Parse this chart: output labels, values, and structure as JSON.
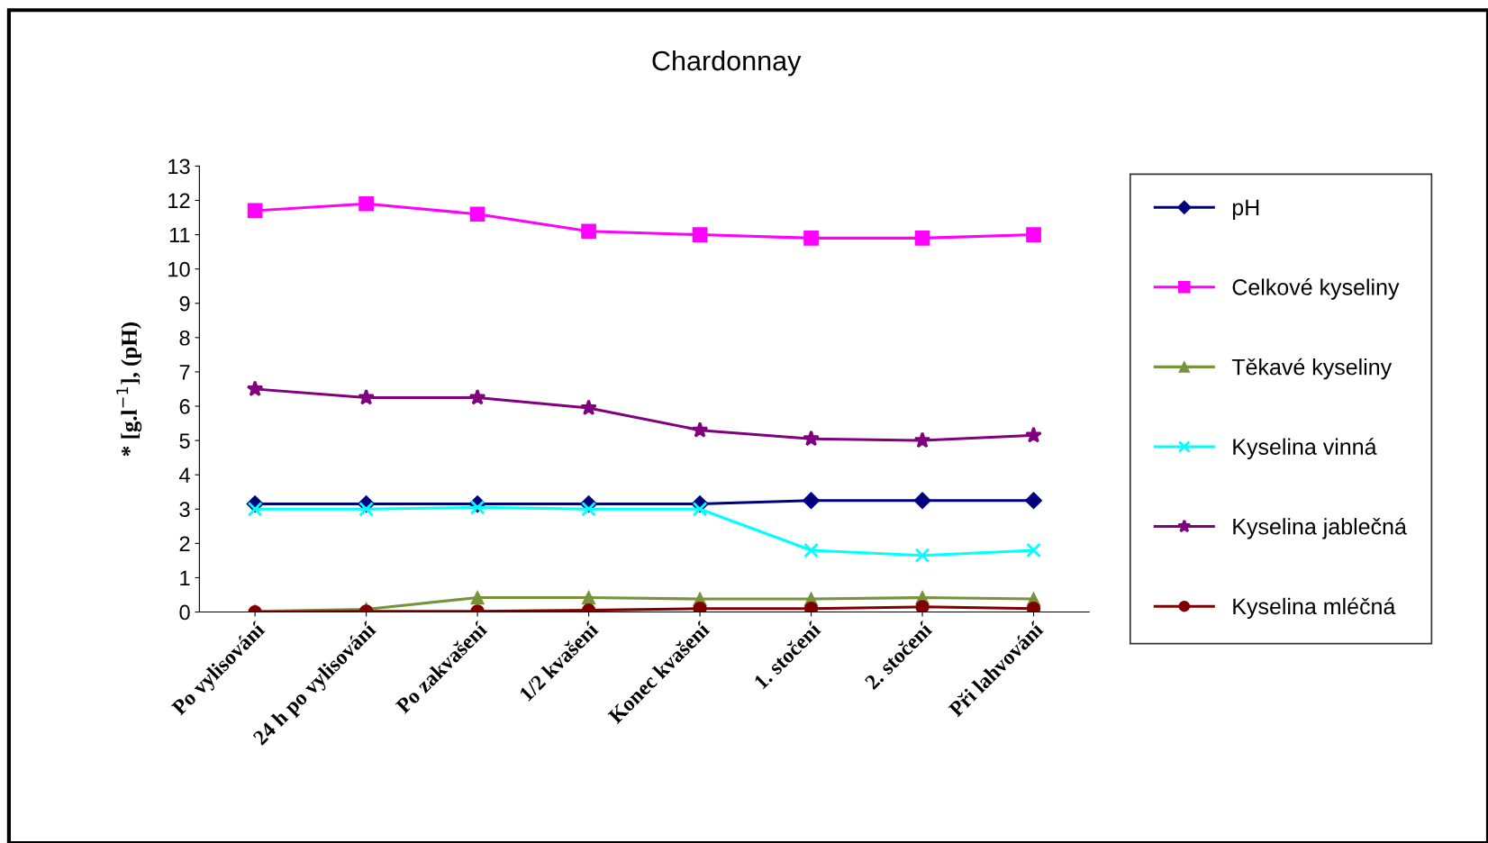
{
  "chart_data": {
    "type": "line",
    "title": "Chardonnay",
    "ylabel": "* [g.l$^{−1}$], (pH)",
    "categories": [
      "Po vylisování",
      "24 h po vylisování",
      "Po zakvašení",
      "1/2 kvašení",
      "Konec kvašení",
      "1. stočení",
      "2. stočení",
      "Při lahvování"
    ],
    "series": [
      {
        "name": "pH",
        "color": "#000080",
        "marker": "diamond",
        "values": [
          3.15,
          3.15,
          3.15,
          3.15,
          3.15,
          3.25,
          3.25,
          3.25
        ]
      },
      {
        "name": "Celkové kyseliny",
        "color": "#ff00ff",
        "marker": "square",
        "values": [
          11.7,
          11.9,
          11.6,
          11.1,
          11.0,
          10.9,
          10.9,
          11.0
        ]
      },
      {
        "name": "Těkavé kyseliny",
        "color": "#77933c",
        "marker": "triangle",
        "values": [
          0.02,
          0.08,
          0.42,
          0.42,
          0.38,
          0.38,
          0.42,
          0.38
        ]
      },
      {
        "name": "Kyselina vinná",
        "color": "#00ffff",
        "marker": "cross",
        "values": [
          3.0,
          3.0,
          3.05,
          3.0,
          3.0,
          1.8,
          1.65,
          1.8
        ]
      },
      {
        "name": "Kyselina jablečná",
        "color": "#800080",
        "marker": "star",
        "values": [
          6.5,
          6.25,
          6.25,
          5.95,
          5.3,
          5.05,
          5.0,
          5.15
        ]
      },
      {
        "name": "Kyselina mléčná",
        "color": "#800000",
        "marker": "circle",
        "values": [
          0.0,
          0.02,
          0.02,
          0.05,
          0.1,
          0.1,
          0.15,
          0.1
        ]
      }
    ],
    "ylim": [
      0,
      13
    ],
    "yticks": [
      0,
      1,
      2,
      3,
      4,
      5,
      6,
      7,
      8,
      9,
      10,
      11,
      12,
      13
    ],
    "grid": false,
    "legend": "right"
  }
}
